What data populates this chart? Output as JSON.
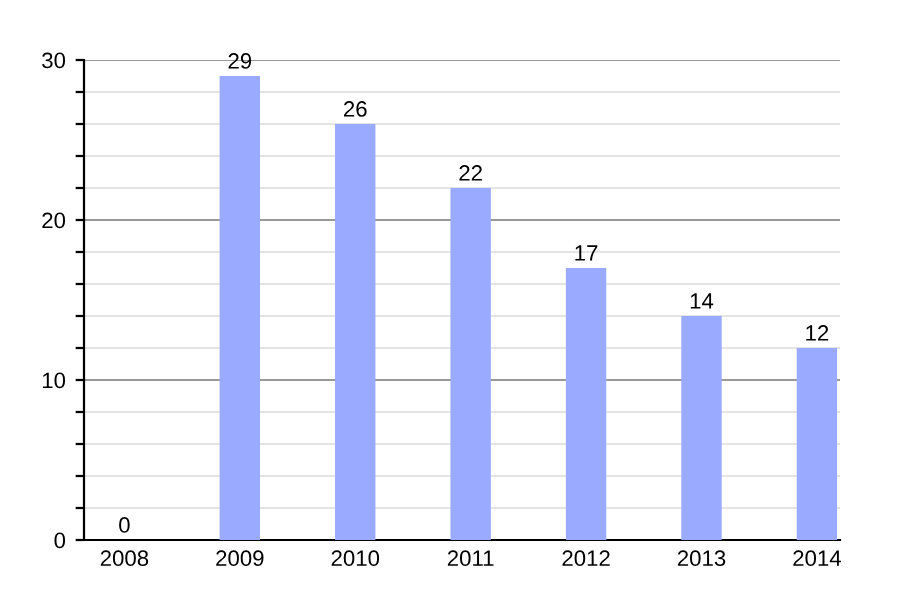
{
  "chart_data": {
    "type": "bar",
    "categories": [
      "2008",
      "2009",
      "2010",
      "2011",
      "2012",
      "2013",
      "2014"
    ],
    "values": [
      0,
      29,
      26,
      22,
      17,
      14,
      12
    ],
    "color": "#99aaff",
    "ylim": [
      0,
      30
    ],
    "yticks": [
      0,
      {
        "value": 2,
        "label": null
      },
      {
        "value": 4,
        "label": null
      },
      {
        "value": 6,
        "label": null
      },
      {
        "value": 8,
        "label": null
      },
      10,
      {
        "value": 12,
        "label": null
      },
      {
        "value": 14,
        "label": null
      },
      {
        "value": 16,
        "label": null
      },
      {
        "value": 18,
        "label": null
      },
      20,
      {
        "value": 22,
        "label": null
      },
      {
        "value": 24,
        "label": null
      },
      {
        "value": 26,
        "label": null
      },
      {
        "value": 28,
        "label": null
      },
      30
    ],
    "grid": true,
    "data_labels": true,
    "legend": false
  }
}
